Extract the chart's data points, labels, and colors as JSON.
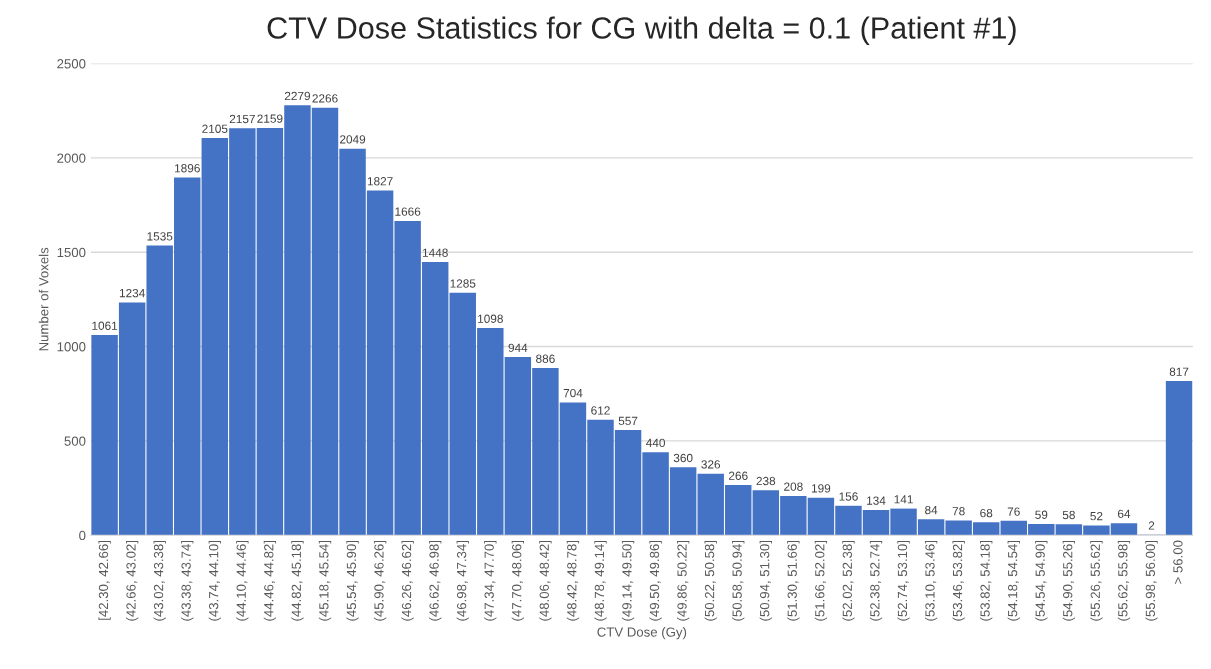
{
  "chart_data": {
    "type": "bar",
    "title": "CTV Dose Statistics for CG with delta = 0.1 (Patient #1)",
    "xlabel": "CTV Dose (Gy)",
    "ylabel": "Number of Voxels",
    "categories": [
      "[42.30, 42.66]",
      "(42.66, 43.02]",
      "(43.02, 43.38]",
      "(43.38, 43.74]",
      "(43.74, 44.10]",
      "(44.10, 44.46]",
      "(44.46, 44.82]",
      "(44.82, 45.18]",
      "(45.18, 45.54]",
      "(45.54, 45.90]",
      "(45.90, 46.26]",
      "(46.26, 46.62]",
      "(46.62, 46.98]",
      "(46.98, 47.34]",
      "(47.34, 47.70]",
      "(47.70, 48.06]",
      "(48.06, 48.42]",
      "(48.42, 48.78]",
      "(48.78, 49.14]",
      "(49.14, 49.50]",
      "(49.50, 49.86]",
      "(49.86, 50.22]",
      "(50.22, 50.58]",
      "(50.58, 50.94]",
      "(50.94, 51.30]",
      "(51.30, 51.66]",
      "(51.66, 52.02]",
      "(52.02, 52.38]",
      "(52.38, 52.74]",
      "(52.74, 53.10]",
      "(53.10, 53.46]",
      "(53.46, 53.82]",
      "(53.82, 54.18]",
      "(54.18, 54.54]",
      "(54.54, 54.90]",
      "(54.90, 55.26]",
      "(55.26, 55.62]",
      "(55.62, 55.98]",
      "(55.98, 56.00]",
      "> 56.00"
    ],
    "values": [
      1061,
      1234,
      1535,
      1896,
      2105,
      2157,
      2159,
      2279,
      2266,
      2049,
      1827,
      1666,
      1448,
      1285,
      1098,
      944,
      886,
      704,
      612,
      557,
      440,
      360,
      326,
      266,
      238,
      208,
      199,
      156,
      134,
      141,
      84,
      78,
      68,
      76,
      59,
      58,
      52,
      64,
      2,
      817
    ],
    "color": "#4472c4",
    "ylim": [
      0,
      2500
    ],
    "yticks": [
      0,
      500,
      1000,
      1500,
      2000,
      2500
    ],
    "grid": "y",
    "data_labels": true
  }
}
